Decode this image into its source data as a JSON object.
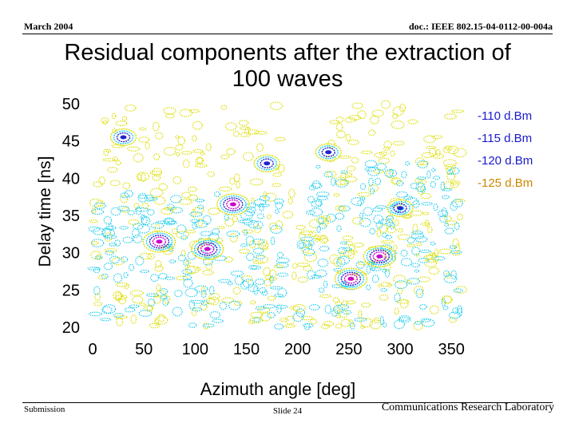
{
  "header": {
    "date": "March 2004",
    "doc_id": "doc.: IEEE 802.15-04-0112-00-004a"
  },
  "title": {
    "line1": "Residual components after the extraction of",
    "line2": "100 waves"
  },
  "chart_data": {
    "type": "heatmap",
    "title": "Residual components after the extraction of 100 waves",
    "xlabel": "Azimuth angle [deg]",
    "ylabel": "Delay time [ns]",
    "xlim": [
      0,
      360
    ],
    "ylim": [
      20,
      50
    ],
    "xticks": [
      0,
      50,
      100,
      150,
      200,
      250,
      300,
      350
    ],
    "yticks": [
      50,
      45,
      40,
      35,
      30,
      25,
      20
    ],
    "legend": [
      {
        "label": "-110 d.Bm",
        "color": "#cc00cc"
      },
      {
        "label": "-115 d.Bm",
        "color": "#2222cc"
      },
      {
        "label": "-120 d.Bm",
        "color": "#22ccee"
      },
      {
        "label": "-125 d.Bm",
        "color": "#dddd00"
      }
    ],
    "legend_position": "right",
    "levels_dBm": [
      -110,
      -115,
      -120,
      -125
    ],
    "peaks": [
      {
        "azimuth": 137,
        "delay": 36.5,
        "level_dBm": -110
      },
      {
        "azimuth": 65,
        "delay": 31.5,
        "level_dBm": -110
      },
      {
        "azimuth": 112,
        "delay": 30.5,
        "level_dBm": -110
      },
      {
        "azimuth": 280,
        "delay": 29.5,
        "level_dBm": -110
      },
      {
        "azimuth": 252,
        "delay": 26.5,
        "level_dBm": -110
      },
      {
        "azimuth": 30,
        "delay": 45.5,
        "level_dBm": -115
      },
      {
        "azimuth": 170,
        "delay": 42.0,
        "level_dBm": -115
      },
      {
        "azimuth": 230,
        "delay": 43.5,
        "level_dBm": -115
      },
      {
        "azimuth": 300,
        "delay": 36.0,
        "level_dBm": -115
      }
    ],
    "regions": [
      {
        "azimuth_range": [
          0,
          190
        ],
        "delay_range": [
          20,
          38
        ],
        "level_dBm": -120
      },
      {
        "azimuth_range": [
          200,
          360
        ],
        "delay_range": [
          20,
          42
        ],
        "level_dBm": -120
      },
      {
        "azimuth_range": [
          0,
          360
        ],
        "delay_range": [
          20,
          50
        ],
        "level_dBm": -125
      }
    ]
  },
  "footer": {
    "left": "Submission",
    "center": "Slide 24",
    "right": "Communications Research Laboratory"
  }
}
